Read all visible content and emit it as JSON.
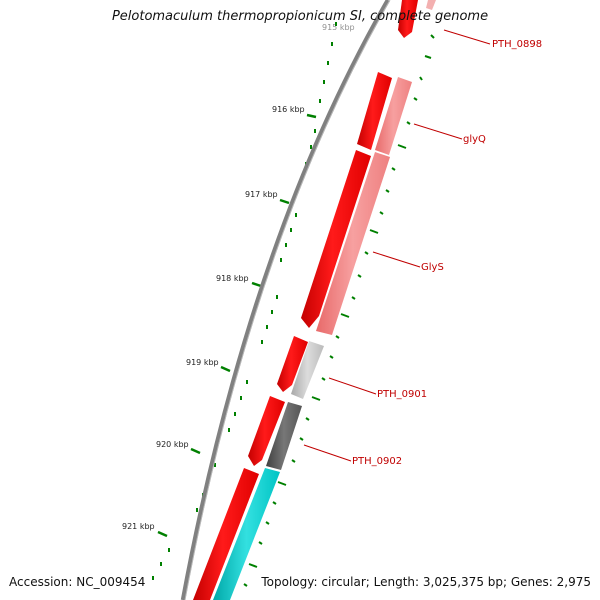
{
  "title": "Pelotomaculum thermopropionicum SI, complete genome",
  "footer": {
    "accession": "Accession: NC_009454",
    "topology": "Topology: circular; Length: 3,025,375 bp; Genes: 2,975"
  },
  "scale_labels": [
    "916 kbp",
    "917 kbp",
    "918 kbp",
    "919 kbp",
    "920 kbp",
    "921 kbp"
  ],
  "genes": [
    {
      "name": "PTH_0898",
      "strand": "forward"
    },
    {
      "name": "glyQ",
      "strand": "forward"
    },
    {
      "name": "GlyS",
      "strand": "forward"
    },
    {
      "name": "PTH_0901",
      "strand": "forward"
    },
    {
      "name": "PTH_0902",
      "strand": "forward"
    }
  ],
  "colors": {
    "cds": "#ff0000",
    "cog_light_red": "#f08080",
    "cog_gray": "#bdbdbd",
    "cog_dark_gray": "#555555",
    "cog_cyan": "#00cccc",
    "backbone": "#808080",
    "ticks": "#008000",
    "label": "#c00000"
  }
}
